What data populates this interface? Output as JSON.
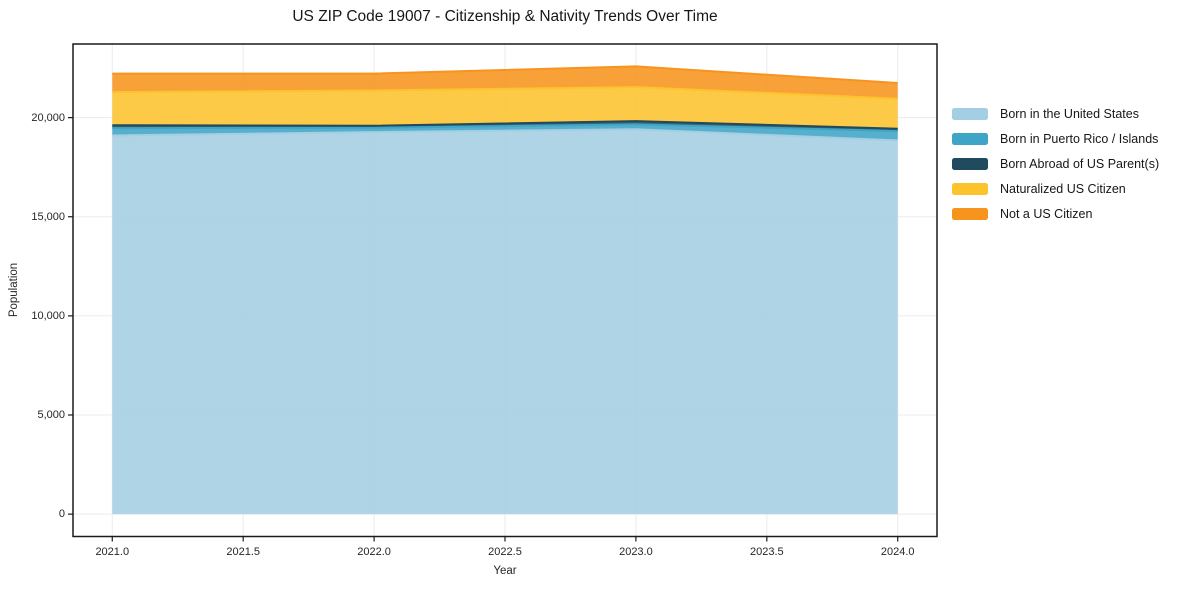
{
  "chart_data": {
    "type": "area",
    "stacked": true,
    "title": "US ZIP Code 19007 - Citizenship & Nativity Trends Over Time",
    "xlabel": "Year",
    "ylabel": "Population",
    "x": [
      2021,
      2022,
      2023,
      2024
    ],
    "series": [
      {
        "name": "Born in the United States",
        "color": "#a3cee3",
        "values": [
          19100,
          19270,
          19410,
          18850
        ]
      },
      {
        "name": "Born in Puerto Rico / Islands",
        "color": "#3fa5c6",
        "values": [
          370,
          220,
          250,
          470
        ]
      },
      {
        "name": "Born Abroad of US Parent(s)",
        "color": "#204a5e",
        "values": [
          150,
          100,
          165,
          120
        ]
      },
      {
        "name": "Naturalized US Citizen",
        "color": "#fcc32d",
        "values": [
          1670,
          1780,
          1715,
          1515
        ]
      },
      {
        "name": "Not a US Citizen",
        "color": "#f7941e",
        "values": [
          930,
          850,
          1045,
          790
        ]
      }
    ],
    "stacked_totals": [
      22220,
      22220,
      22585,
      21745
    ],
    "x_tick_labels": [
      "2021.0",
      "2021.5",
      "2022.0",
      "2022.5",
      "2023.0",
      "2023.5",
      "2024.0"
    ],
    "x_tick_values": [
      2021,
      2021.5,
      2022,
      2022.5,
      2023,
      2023.5,
      2024
    ],
    "y_tick_labels": [
      "0",
      "5,000",
      "10,000",
      "15,000",
      "20,000"
    ],
    "y_tick_values": [
      0,
      5000,
      10000,
      15000,
      20000
    ],
    "xlim": [
      2020.85,
      2024.15
    ],
    "ylim": [
      -1129,
      23714
    ],
    "grid": true,
    "legend_position": "right",
    "fill_opacity": 0.88
  }
}
